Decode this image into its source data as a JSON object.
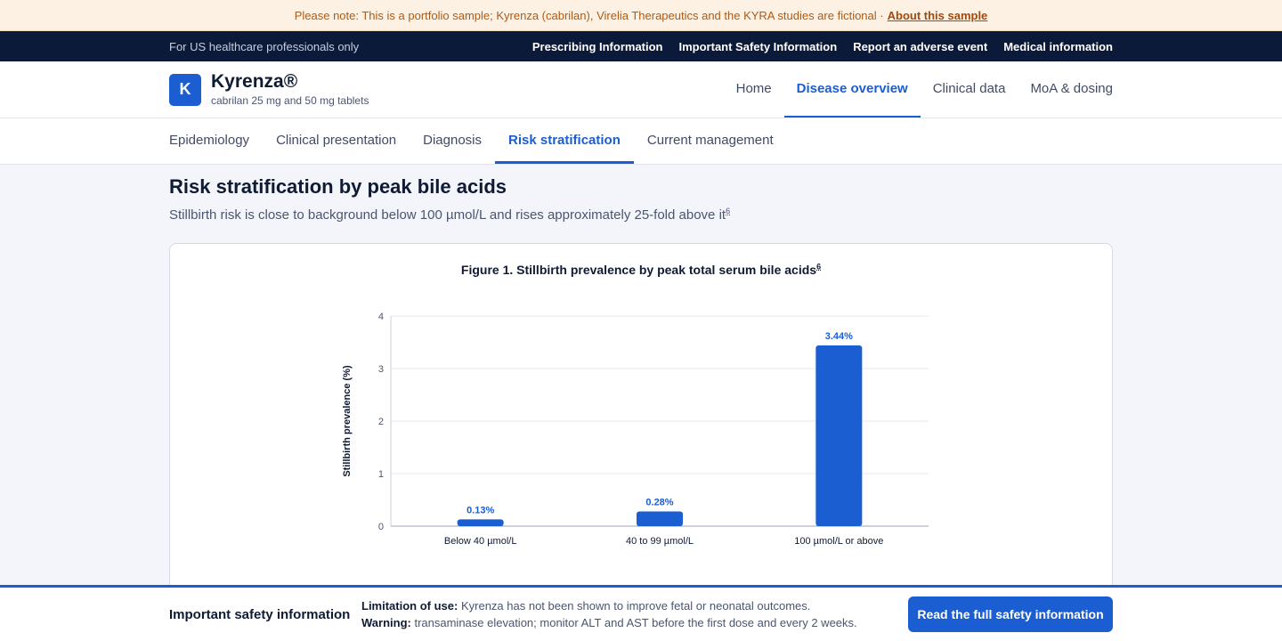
{
  "notice": {
    "text": "Please note: This is a portfolio sample; Kyrenza (cabrilan), Virelia Therapeutics and the KYRA studies are fictional ·",
    "link": "About this sample"
  },
  "utility": {
    "audience": "For US healthcare professionals only",
    "links": [
      "Prescribing Information",
      "Important Safety Information",
      "Report an adverse event",
      "Medical information"
    ]
  },
  "brand": {
    "logo_letter": "K",
    "name": "Kyrenza®",
    "subtitle": "cabrilan 25 mg and 50 mg tablets"
  },
  "main_nav": {
    "items": [
      "Home",
      "Disease overview",
      "Clinical data",
      "MoA & dosing"
    ],
    "active": "Disease overview"
  },
  "sub_nav": {
    "items": [
      "Epidemiology",
      "Clinical presentation",
      "Diagnosis",
      "Risk stratification",
      "Current management"
    ],
    "active": "Risk stratification"
  },
  "page": {
    "title": "Risk stratification by peak bile acids",
    "lead": "Stillbirth risk is close to background below 100 µmol/L and rises approximately 25-fold above it",
    "lead_ref": "6"
  },
  "figure": {
    "title": "Figure 1. Stillbirth prevalence by peak total serum bile acids",
    "ref": "6"
  },
  "chart_data": {
    "type": "bar",
    "title": "Figure 1. Stillbirth prevalence by peak total serum bile acids",
    "categories": [
      "Below 40 µmol/L",
      "40 to 99 µmol/L",
      "100 µmol/L or above"
    ],
    "values": [
      0.13,
      0.28,
      3.44
    ],
    "data_labels": [
      "0.13%",
      "0.28%",
      "3.44%"
    ],
    "xlabel": "",
    "ylabel": "Stillbirth prevalence (%)",
    "ylim": [
      0,
      4
    ],
    "yticks": [
      0,
      1,
      2,
      3,
      4
    ],
    "grid": true,
    "legend": "none",
    "bar_color": "#1a5ed1"
  },
  "isi": {
    "title": "Important safety information",
    "limitation_label": "Limitation of use:",
    "limitation_text": "Kyrenza has not been shown to improve fetal or neonatal outcomes.",
    "warning_label": "Warning:",
    "warning_text": "transaminase elevation; monitor ALT and AST before the first dose and every 2 weeks.",
    "button": "Read the full safety information"
  },
  "colors": {
    "accent": "#1a5ed1",
    "utility_bar": "#0c1a3a",
    "notice_bg": "#fdf1e3",
    "notice_text": "#b05a12"
  }
}
